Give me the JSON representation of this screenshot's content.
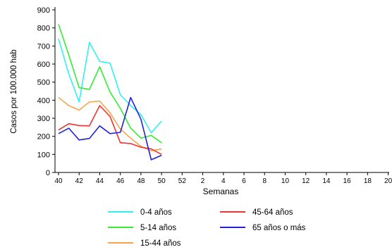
{
  "chart_data": {
    "type": "line",
    "title": "",
    "xlabel": "Semanas",
    "ylabel": "Casos por 100.000 hab",
    "x_tick_labels": [
      "40",
      "42",
      "44",
      "46",
      "48",
      "50",
      "52",
      "2",
      "4",
      "6",
      "8",
      "10",
      "12",
      "14",
      "16",
      "18",
      "20"
    ],
    "ylim": [
      0,
      900
    ],
    "y_ticks": [
      0,
      100,
      200,
      300,
      400,
      500,
      600,
      700,
      800,
      900
    ],
    "grid": false,
    "legend_position": "bottom",
    "weeks": [
      40,
      41,
      42,
      43,
      44,
      45,
      46,
      47,
      48,
      49,
      50
    ],
    "series": [
      {
        "name": "0-4 años",
        "color": "#33f0f0",
        "values": [
          740,
          545,
          390,
          720,
          615,
          605,
          430,
          370,
          320,
          220,
          285
        ]
      },
      {
        "name": "5-14 años",
        "color": "#33ee33",
        "values": [
          820,
          650,
          470,
          460,
          585,
          445,
          355,
          245,
          190,
          205,
          165
        ]
      },
      {
        "name": "15-44 años",
        "color": "#f6a54a",
        "values": [
          415,
          370,
          345,
          390,
          395,
          330,
          240,
          190,
          145,
          120,
          130
        ]
      },
      {
        "name": "45-64 años",
        "color": "#ee3333",
        "values": [
          235,
          270,
          260,
          258,
          370,
          310,
          165,
          160,
          140,
          130,
          100
        ]
      },
      {
        "name": "65 años o más",
        "color": "#2222dd",
        "values": [
          215,
          245,
          180,
          188,
          258,
          215,
          222,
          415,
          295,
          70,
          95
        ]
      }
    ]
  }
}
